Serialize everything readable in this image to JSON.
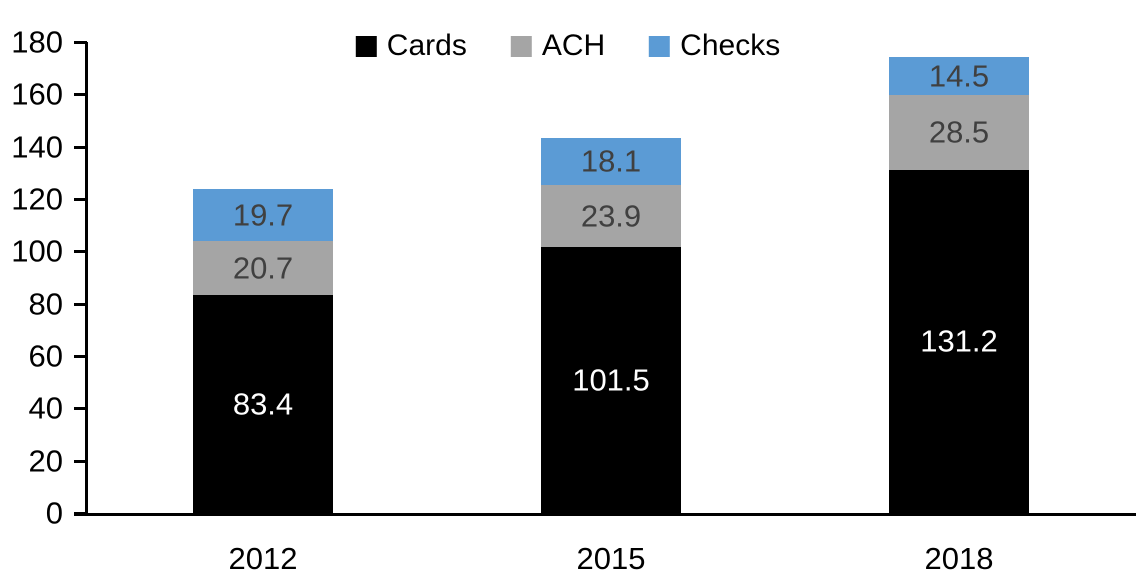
{
  "chart_data": {
    "type": "bar",
    "stacked": true,
    "title": "",
    "xlabel": "",
    "ylabel": "",
    "categories": [
      "2012",
      "2015",
      "2018"
    ],
    "series": [
      {
        "name": "Cards",
        "values": [
          83.4,
          101.5,
          131.2
        ],
        "color": "#000000",
        "label_color": "#ffffff"
      },
      {
        "name": "ACH",
        "values": [
          20.7,
          23.9,
          28.5
        ],
        "color": "#a5a5a5",
        "label_color": "#404040"
      },
      {
        "name": "Checks",
        "values": [
          19.7,
          18.1,
          14.5
        ],
        "color": "#5b9bd5",
        "label_color": "#404040"
      }
    ],
    "totals": [
      123.8,
      143.5,
      174.2
    ],
    "ylim": [
      0,
      180
    ],
    "ytick_step": 20,
    "y_tick_labels": [
      "0",
      "20",
      "40",
      "60",
      "80",
      "100",
      "120",
      "140",
      "160",
      "180"
    ],
    "grid": false,
    "data_labels": true,
    "legend_position": "top",
    "axis_color": "#000000",
    "background_color": "#ffffff"
  }
}
